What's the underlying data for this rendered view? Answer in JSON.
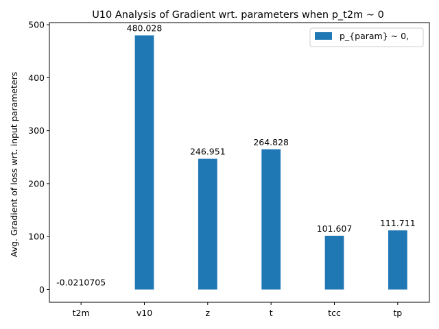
{
  "chart_data": {
    "type": "bar",
    "title": "U10 Analysis of Gradient wrt. parameters when p_t2m ~ 0",
    "xlabel": "",
    "ylabel": "Avg. Gradient of loss wrt. input parameters",
    "categories": [
      "t2m",
      "v10",
      "z",
      "t",
      "tcc",
      "tp"
    ],
    "series": [
      {
        "name": "p_{param} ~ 0,",
        "values": [
          -0.0210705,
          480.028,
          246.951,
          264.828,
          101.607,
          111.711
        ],
        "labels": [
          "-0.0210705",
          "480.028",
          "246.951",
          "264.828",
          "101.607",
          "111.711"
        ],
        "color": "#1f77b4"
      }
    ],
    "ylim": [
      -24.0,
      504.0
    ],
    "yticks": [
      0,
      100,
      200,
      300,
      400,
      500
    ],
    "grid": false,
    "legend_position": "upper-right"
  }
}
